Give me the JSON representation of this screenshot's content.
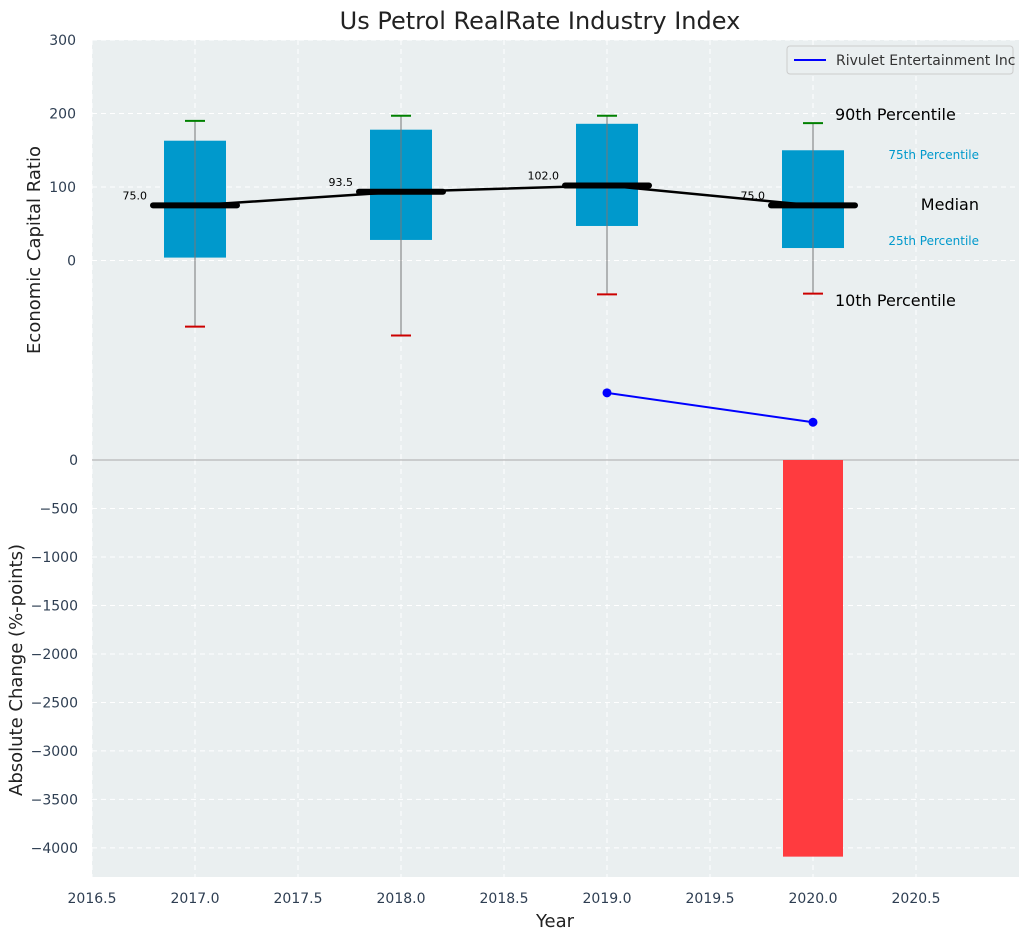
{
  "chart_data": {
    "type": "box",
    "title": "Us Petrol RealRate Industry Index",
    "xlabel": "Year",
    "x_tick_labels": [
      "2016.5",
      "2017.0",
      "2017.5",
      "2018.0",
      "2018.5",
      "2019.0",
      "2019.5",
      "2020.0",
      "2020.5"
    ],
    "x_ticks": [
      2016.5,
      2017.0,
      2017.5,
      2018.0,
      2018.5,
      2019.0,
      2019.5,
      2020.0,
      2020.5
    ],
    "xlim": [
      2016.5,
      2021.0
    ],
    "top_panel": {
      "ylabel": "Economic Capital Ratio",
      "ylim": [
        -270,
        300
      ],
      "y_ticks": [
        0,
        100,
        200,
        300
      ],
      "y_tick_labels": [
        "0",
        "100",
        "200",
        "300"
      ],
      "boxes": [
        {
          "year": 2017,
          "p10": -90,
          "p25": 4,
          "median": 75,
          "p75": 163,
          "p90": 190,
          "median_label": "75.0"
        },
        {
          "year": 2018,
          "p10": -102,
          "p25": 28,
          "median": 93.5,
          "p75": 178,
          "p90": 197,
          "median_label": "93.5"
        },
        {
          "year": 2019,
          "p10": -46,
          "p25": 47,
          "median": 102,
          "p75": 186,
          "p90": 197,
          "median_label": "102.0"
        },
        {
          "year": 2020,
          "p10": -45,
          "p25": 17,
          "median": 75,
          "p75": 150,
          "p90": 187,
          "median_label": "75.0"
        }
      ],
      "company_series": {
        "name": "Rivulet Entertainment Inc",
        "color": "#0000ff",
        "x": [
          2019,
          2020
        ],
        "y": [
          -180,
          -220
        ]
      },
      "annotations": {
        "p90": "90th Percentile",
        "p75": "75th Percentile",
        "median": "Median",
        "p25": "25th Percentile",
        "p10": "10th Percentile"
      },
      "legend_position": "top-right"
    },
    "bottom_panel": {
      "type": "bar",
      "ylabel": "Absolute Change (%-points)",
      "ylim": [
        -4300,
        0
      ],
      "y_ticks": [
        0,
        -500,
        -1000,
        -1500,
        -2000,
        -2500,
        -3000,
        -3500,
        -4000
      ],
      "y_tick_labels": [
        "0",
        "−500",
        "−1000",
        "−1500",
        "−2000",
        "−2500",
        "−3000",
        "−3500",
        "−4000"
      ],
      "bars": [
        {
          "year": 2020,
          "value": -4090,
          "color": "#ff3b3f"
        }
      ]
    },
    "colors": {
      "box": "#0099cc",
      "median_line": "#000000",
      "p90_cap": "#008000",
      "p10_cap": "#cc0000",
      "background": "#eaeff0",
      "annotation_box": "#0099cc"
    }
  }
}
